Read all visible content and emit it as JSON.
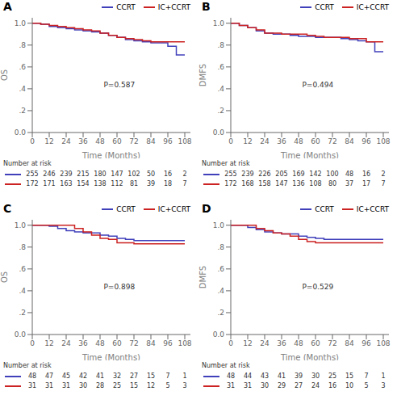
{
  "chart_data": [
    {
      "type": "line",
      "title": "A",
      "ylabel": "OS",
      "xlabel": "Time (Months)",
      "annotations": [
        "P=0.587"
      ],
      "line_style": "step",
      "legend": "upper right",
      "grid": false,
      "x": [
        0,
        6,
        12,
        18,
        24,
        30,
        36,
        42,
        48,
        54,
        60,
        66,
        72,
        78,
        84,
        90,
        96,
        102,
        108
      ],
      "series": [
        {
          "name": "CCRT",
          "color": "#4040bb",
          "values": [
            1.0,
            0.99,
            0.97,
            0.96,
            0.95,
            0.94,
            0.93,
            0.92,
            0.91,
            0.89,
            0.87,
            0.85,
            0.84,
            0.83,
            0.82,
            0.82,
            0.79,
            0.71,
            0.71
          ],
          "at_risk": [
            255,
            246,
            239,
            215,
            180,
            147,
            102,
            50,
            16,
            2
          ]
        },
        {
          "name": "IC+CCRT",
          "color": "#cc2222",
          "values": [
            1.0,
            0.99,
            0.98,
            0.97,
            0.96,
            0.95,
            0.94,
            0.93,
            0.91,
            0.89,
            0.87,
            0.86,
            0.85,
            0.84,
            0.83,
            0.83,
            0.83,
            0.83,
            0.83
          ],
          "at_risk": [
            172,
            171,
            163,
            154,
            138,
            112,
            81,
            39,
            18,
            7
          ]
        }
      ],
      "at_risk_title": "Number at risk",
      "at_risk_x": [
        0,
        12,
        24,
        36,
        48,
        60,
        72,
        84,
        96,
        108
      ],
      "xlim": [
        0,
        112
      ],
      "ylim": [
        0.0,
        1.05
      ],
      "xticks": [
        0,
        12,
        24,
        36,
        48,
        60,
        72,
        84,
        96,
        108
      ],
      "yticks": [
        {
          "value": 0.0,
          "label": "0.0"
        },
        {
          "value": 0.2,
          "label": ".2"
        },
        {
          "value": 0.4,
          "label": ".4"
        },
        {
          "value": 0.6,
          "label": ".6"
        },
        {
          "value": 0.8,
          "label": ".8"
        },
        {
          "value": 1.0,
          "label": "1.0"
        }
      ]
    },
    {
      "type": "line",
      "title": "B",
      "ylabel": "DMFS",
      "xlabel": "Time (Months)",
      "annotations": [
        "P=0.494"
      ],
      "line_style": "step",
      "legend": "upper right",
      "grid": false,
      "x": [
        0,
        6,
        12,
        18,
        24,
        30,
        36,
        42,
        48,
        54,
        60,
        66,
        72,
        78,
        84,
        90,
        96,
        102,
        108
      ],
      "series": [
        {
          "name": "CCRT",
          "color": "#4040bb",
          "values": [
            1.0,
            0.98,
            0.96,
            0.93,
            0.91,
            0.9,
            0.9,
            0.89,
            0.88,
            0.88,
            0.87,
            0.87,
            0.87,
            0.86,
            0.85,
            0.84,
            0.83,
            0.74,
            0.74
          ],
          "at_risk": [
            255,
            239,
            226,
            205,
            169,
            142,
            100,
            48,
            16,
            2
          ]
        },
        {
          "name": "IC+CCRT",
          "color": "#cc2222",
          "values": [
            1.0,
            0.98,
            0.96,
            0.94,
            0.91,
            0.91,
            0.9,
            0.9,
            0.9,
            0.89,
            0.88,
            0.87,
            0.87,
            0.87,
            0.86,
            0.86,
            0.83,
            0.83,
            0.83
          ],
          "at_risk": [
            172,
            168,
            158,
            147,
            136,
            108,
            80,
            37,
            17,
            7
          ]
        }
      ],
      "at_risk_title": "Number at risk",
      "at_risk_x": [
        0,
        12,
        24,
        36,
        48,
        60,
        72,
        84,
        96,
        108
      ],
      "xlim": [
        0,
        112
      ],
      "ylim": [
        0.0,
        1.05
      ],
      "xticks": [
        0,
        12,
        24,
        36,
        48,
        60,
        72,
        84,
        96,
        108
      ],
      "yticks": [
        {
          "value": 0.0,
          "label": "0.0"
        },
        {
          "value": 0.2,
          "label": ".2"
        },
        {
          "value": 0.4,
          "label": ".4"
        },
        {
          "value": 0.6,
          "label": ".6"
        },
        {
          "value": 0.8,
          "label": ".8"
        },
        {
          "value": 1.0,
          "label": "1.0"
        }
      ]
    },
    {
      "type": "line",
      "title": "C",
      "ylabel": "OS",
      "xlabel": "Time (Months)",
      "annotations": [
        "P=0.898"
      ],
      "line_style": "step",
      "legend": "upper right",
      "grid": false,
      "x": [
        0,
        6,
        12,
        18,
        24,
        30,
        36,
        42,
        48,
        54,
        60,
        66,
        72,
        78,
        84,
        90,
        96,
        102,
        108
      ],
      "series": [
        {
          "name": "CCRT",
          "color": "#4040bb",
          "values": [
            1.0,
            1.0,
            0.99,
            0.97,
            0.95,
            0.94,
            0.93,
            0.93,
            0.91,
            0.9,
            0.88,
            0.87,
            0.86,
            0.86,
            0.86,
            0.86,
            0.86,
            0.86,
            0.86
          ],
          "at_risk": [
            48,
            47,
            45,
            42,
            41,
            32,
            27,
            15,
            7,
            1
          ]
        },
        {
          "name": "IC+CCRT",
          "color": "#cc2222",
          "values": [
            1.0,
            1.0,
            1.0,
            1.0,
            1.0,
            0.97,
            0.94,
            0.91,
            0.88,
            0.87,
            0.84,
            0.84,
            0.83,
            0.83,
            0.83,
            0.83,
            0.83,
            0.83,
            0.83
          ],
          "at_risk": [
            31,
            31,
            31,
            30,
            28,
            25,
            15,
            12,
            5,
            3
          ]
        }
      ],
      "at_risk_title": "Number at risk",
      "at_risk_x": [
        0,
        12,
        24,
        36,
        48,
        60,
        72,
        84,
        96,
        108
      ],
      "xlim": [
        0,
        112
      ],
      "ylim": [
        0.0,
        1.05
      ],
      "xticks": [
        0,
        12,
        24,
        36,
        48,
        60,
        72,
        84,
        96,
        108
      ],
      "yticks": [
        {
          "value": 0.0,
          "label": "0.0"
        },
        {
          "value": 0.2,
          "label": ".2"
        },
        {
          "value": 0.4,
          "label": ".4"
        },
        {
          "value": 0.6,
          "label": ".6"
        },
        {
          "value": 0.8,
          "label": ".8"
        },
        {
          "value": 1.0,
          "label": "1.0"
        }
      ]
    },
    {
      "type": "line",
      "title": "D",
      "ylabel": "DMFS",
      "xlabel": "Time (Months)",
      "annotations": [
        "P=0.529"
      ],
      "line_style": "step",
      "legend": "upper right",
      "grid": false,
      "x": [
        0,
        6,
        12,
        18,
        24,
        30,
        36,
        42,
        48,
        54,
        60,
        66,
        72,
        78,
        84,
        90,
        96,
        102,
        108
      ],
      "series": [
        {
          "name": "CCRT",
          "color": "#4040bb",
          "values": [
            1.0,
            1.0,
            0.98,
            0.96,
            0.94,
            0.93,
            0.92,
            0.92,
            0.9,
            0.89,
            0.88,
            0.87,
            0.87,
            0.87,
            0.87,
            0.87,
            0.87,
            0.87,
            0.87
          ],
          "at_risk": [
            48,
            44,
            43,
            41,
            39,
            30,
            25,
            15,
            7,
            1
          ]
        },
        {
          "name": "IC+CCRT",
          "color": "#cc2222",
          "values": [
            1.0,
            1.0,
            1.0,
            0.97,
            0.95,
            0.93,
            0.92,
            0.9,
            0.87,
            0.85,
            0.84,
            0.84,
            0.84,
            0.84,
            0.84,
            0.84,
            0.84,
            0.84,
            0.84
          ],
          "at_risk": [
            31,
            31,
            30,
            29,
            27,
            24,
            16,
            10,
            5,
            3
          ]
        }
      ],
      "at_risk_title": "Number at risk",
      "at_risk_x": [
        0,
        12,
        24,
        36,
        48,
        60,
        72,
        84,
        96,
        108
      ],
      "xlim": [
        0,
        112
      ],
      "ylim": [
        0.0,
        1.05
      ],
      "xticks": [
        0,
        12,
        24,
        36,
        48,
        60,
        72,
        84,
        96,
        108
      ],
      "yticks": [
        {
          "value": 0.0,
          "label": "0.0"
        },
        {
          "value": 0.2,
          "label": ".2"
        },
        {
          "value": 0.4,
          "label": ".4"
        },
        {
          "value": 0.6,
          "label": ".6"
        },
        {
          "value": 0.8,
          "label": ".8"
        },
        {
          "value": 1.0,
          "label": "1.0"
        }
      ]
    }
  ]
}
